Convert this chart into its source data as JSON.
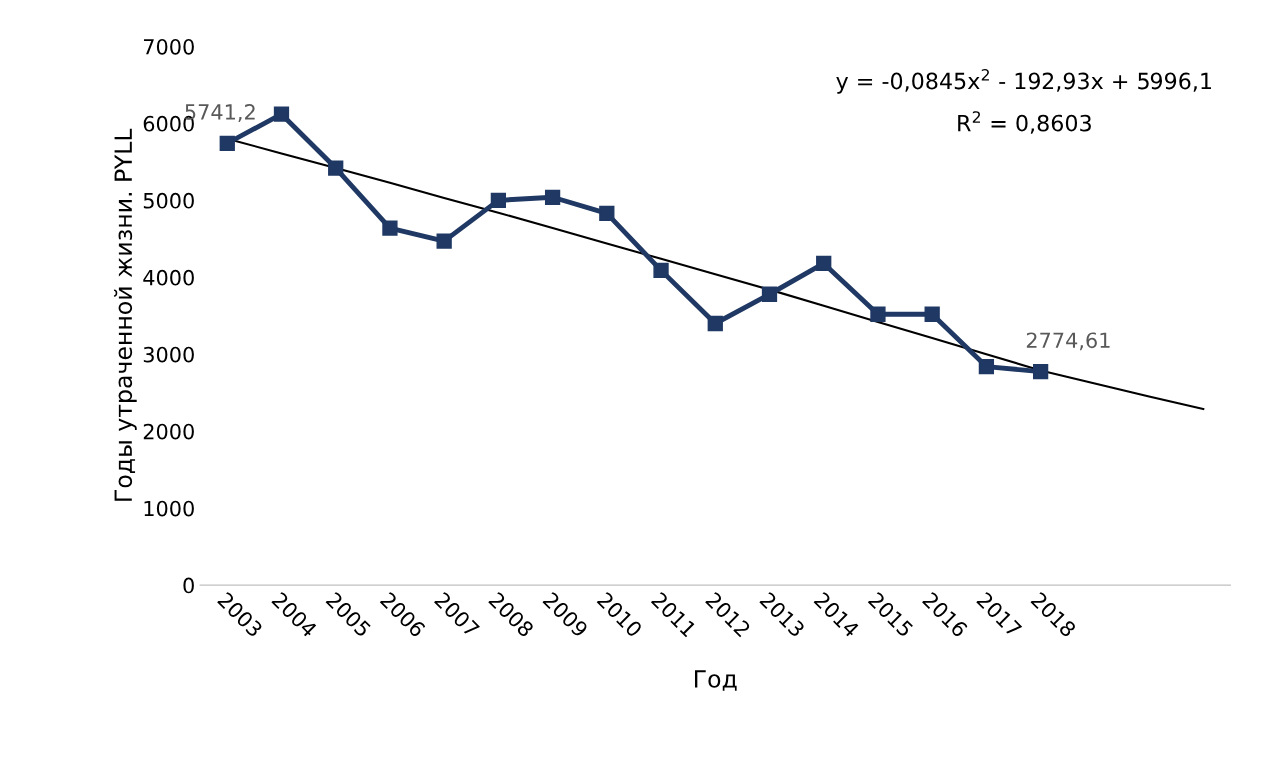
{
  "chart_data": {
    "type": "line",
    "xlabel": "Год",
    "ylabel": "Годы утраченной жизни. PYLL",
    "categories": [
      "2003",
      "2004",
      "2005",
      "2006",
      "2007",
      "2008",
      "2009",
      "2010",
      "2011",
      "2012",
      "2013",
      "2014",
      "2015",
      "2016",
      "2017",
      "2018",
      null,
      null,
      null
    ],
    "series": [
      {
        "color": "#1f3864",
        "marker": "square",
        "values": [
          5741.2,
          6120,
          5420,
          4640,
          4470,
          5000,
          5040,
          4830,
          4090,
          3400,
          3780,
          4180,
          3520,
          3520,
          2840,
          2774.61,
          null,
          null,
          null
        ],
        "value_labels": [
          "5741,2",
          null,
          null,
          null,
          null,
          null,
          null,
          null,
          null,
          null,
          null,
          null,
          null,
          null,
          null,
          "2774,61",
          null,
          null,
          null
        ]
      },
      {
        "type": "line",
        "color": "#000000",
        "marker": "none",
        "values": [
          5800,
          5610,
          5420,
          5230,
          5030,
          4840,
          4640,
          4440,
          4240,
          4040,
          3840,
          3630,
          3420,
          3210,
          3000,
          2790,
          2620,
          2450,
          2290
        ]
      }
    ],
    "ylim": [
      0,
      7000
    ],
    "yticks": [
      0,
      1000,
      2000,
      3000,
      4000,
      5000,
      6000,
      7000
    ],
    "grid": false,
    "legend": false,
    "annotations": [
      "y = -0,0845x$^{2}$ - 192,93x + 5996,1",
      "R$^{2}$ = 0,8603"
    ]
  }
}
